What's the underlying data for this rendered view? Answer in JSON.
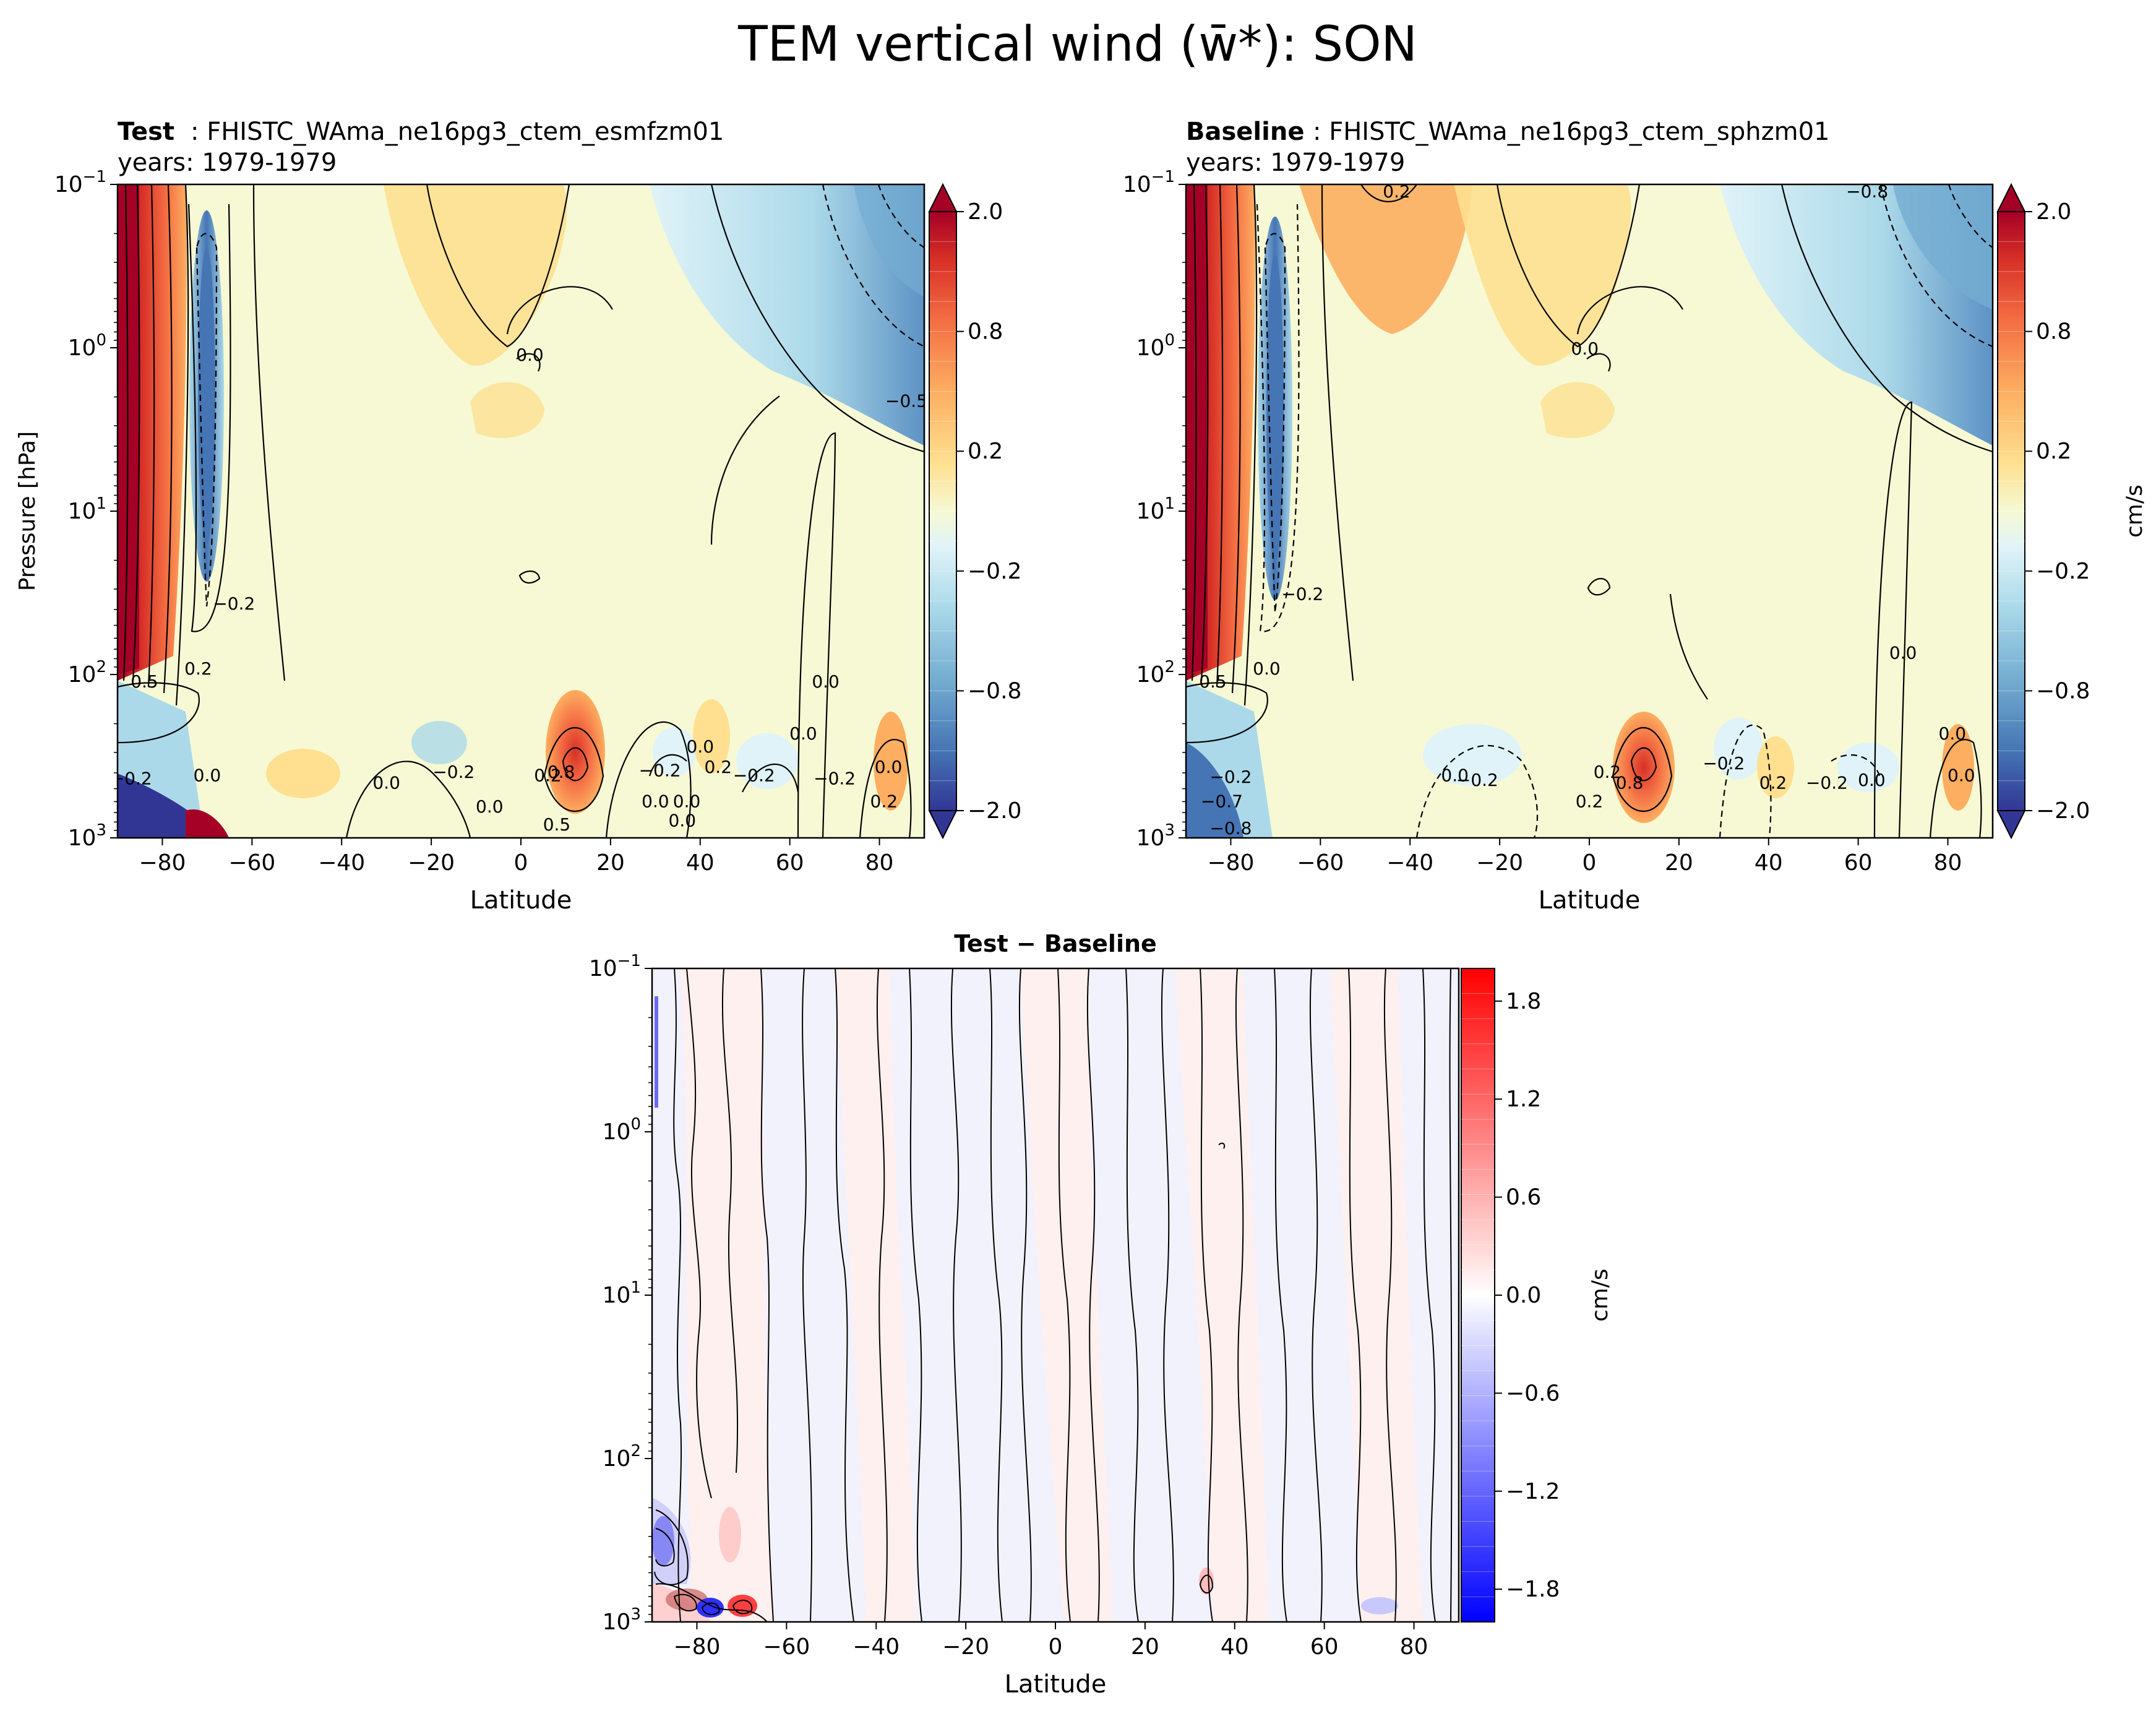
{
  "figure": {
    "title": "TEM vertical wind (w̄*): SON"
  },
  "chart_data": [
    {
      "id": "test",
      "type": "heatmap",
      "title_bold": "Test",
      "title_rest": ": FHISTC_WAma_ne16pg3_ctem_esmfzm01",
      "subtitle": "years: 1979-1979",
      "xlabel": "Latitude",
      "ylabel": "Pressure [hPa]",
      "xlim": [
        -90,
        90
      ],
      "xticks": [
        -80,
        -60,
        -40,
        -20,
        0,
        20,
        40,
        60,
        80
      ],
      "ylim_hPa": [
        0.1,
        1000
      ],
      "yticks": [
        "10^-1",
        "10^0",
        "10^1",
        "10^2",
        "10^3"
      ],
      "colorbar": {
        "ticks": [
          "2.0",
          "0.8",
          "0.2",
          "−0.2",
          "−0.8",
          "−2.0"
        ],
        "extend": "both",
        "unit": ""
      },
      "contour_labels": [
        {
          "text": "0.0",
          "lat": 2,
          "p": 1.2
        },
        {
          "text": "−0.5",
          "lat": 86,
          "p": 2.3
        },
        {
          "text": "−0.2",
          "lat": -64,
          "p": 40
        },
        {
          "text": "0.2",
          "lat": -72,
          "p": 100
        },
        {
          "text": "0.5",
          "lat": -84,
          "p": 120
        },
        {
          "text": "0.0",
          "lat": 68,
          "p": 120
        },
        {
          "text": "0.0",
          "lat": 63,
          "p": 250
        },
        {
          "text": "0.0",
          "lat": 40,
          "p": 300
        },
        {
          "text": "0.2",
          "lat": 44,
          "p": 400
        },
        {
          "text": "−0.2",
          "lat": 31,
          "p": 420
        },
        {
          "text": "−0.2",
          "lat": 52,
          "p": 450
        },
        {
          "text": "−0.2",
          "lat": 70,
          "p": 470
        },
        {
          "text": "0.0",
          "lat": -30,
          "p": 500
        },
        {
          "text": "−0.2",
          "lat": -15,
          "p": 430
        },
        {
          "text": "0.2",
          "lat": 6,
          "p": 450
        },
        {
          "text": "0.8",
          "lat": 9,
          "p": 430
        },
        {
          "text": "0.0",
          "lat": -7,
          "p": 700
        },
        {
          "text": "0.0",
          "lat": 30,
          "p": 650
        },
        {
          "text": "0.0",
          "lat": 37,
          "p": 650
        },
        {
          "text": "0.0",
          "lat": 36,
          "p": 850
        },
        {
          "text": "0.5",
          "lat": 8,
          "p": 900
        },
        {
          "text": "0.2",
          "lat": 81,
          "p": 650
        },
        {
          "text": "0.0",
          "lat": 82,
          "p": 400
        },
        {
          "text": "0.0",
          "lat": -70,
          "p": 450
        },
        {
          "text": "−0.2",
          "lat": -87,
          "p": 470
        }
      ]
    },
    {
      "id": "baseline",
      "type": "heatmap",
      "title_bold": "Baseline",
      "title_rest": ": FHISTC_WAma_ne16pg3_ctem_sphzm01",
      "subtitle": "years: 1979-1979",
      "xlabel": "Latitude",
      "ylabel": "",
      "xlim": [
        -90,
        90
      ],
      "xticks": [
        -80,
        -60,
        -40,
        -20,
        0,
        20,
        40,
        60,
        80
      ],
      "ylim_hPa": [
        0.1,
        1000
      ],
      "yticks": [
        "10^-1",
        "10^0",
        "10^1",
        "10^2",
        "10^3"
      ],
      "colorbar": {
        "ticks": [
          "2.0",
          "0.8",
          "0.2",
          "−0.2",
          "−0.8",
          "−2.0"
        ],
        "extend": "both",
        "unit": "cm/s"
      },
      "contour_labels": [
        {
          "text": "0.2",
          "lat": -43,
          "p": 0.12
        },
        {
          "text": "−0.8",
          "lat": 62,
          "p": 0.12
        },
        {
          "text": "0.0",
          "lat": -1,
          "p": 1.1
        },
        {
          "text": "−0.2",
          "lat": -64,
          "p": 35
        },
        {
          "text": "0.0",
          "lat": 70,
          "p": 80
        },
        {
          "text": "0.0",
          "lat": -72,
          "p": 100
        },
        {
          "text": "0.5",
          "lat": -84,
          "p": 120
        },
        {
          "text": "0.0",
          "lat": 81,
          "p": 250
        },
        {
          "text": "−0.2",
          "lat": 30,
          "p": 380
        },
        {
          "text": "0.2",
          "lat": 4,
          "p": 430
        },
        {
          "text": "0.8",
          "lat": 9,
          "p": 500
        },
        {
          "text": "0.0",
          "lat": -30,
          "p": 450
        },
        {
          "text": "−0.2",
          "lat": -25,
          "p": 480
        },
        {
          "text": "0.0",
          "lat": 63,
          "p": 480
        },
        {
          "text": "0.2",
          "lat": 41,
          "p": 500
        },
        {
          "text": "−0.2",
          "lat": 53,
          "p": 500
        },
        {
          "text": "0.0",
          "lat": 83,
          "p": 450
        },
        {
          "text": "−0.2",
          "lat": -80,
          "p": 460
        },
        {
          "text": "−0.7",
          "lat": -82,
          "p": 650
        },
        {
          "text": "0.2",
          "lat": 0,
          "p": 650
        },
        {
          "text": "−0.8",
          "lat": -80,
          "p": 950
        }
      ]
    },
    {
      "id": "diff",
      "type": "heatmap",
      "title_bold": "Test − Baseline",
      "xlabel": "Latitude",
      "xlim": [
        -90,
        90
      ],
      "xticks": [
        -80,
        -60,
        -40,
        -20,
        0,
        20,
        40,
        60,
        80
      ],
      "ylim_hPa": [
        0.1,
        1000
      ],
      "yticks": [
        "10^-1",
        "10^0",
        "10^1",
        "10^2",
        "10^3"
      ],
      "colorbar": {
        "ticks": [
          "1.8",
          "1.2",
          "0.6",
          "0.0",
          "−0.6",
          "−1.2",
          "−1.8"
        ],
        "range": [
          -2.0,
          2.0
        ],
        "unit": "cm/s"
      }
    }
  ]
}
